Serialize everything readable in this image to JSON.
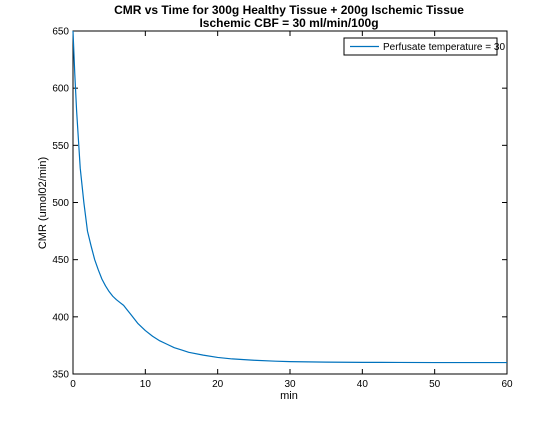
{
  "chart_data": {
    "type": "line",
    "title": "CMR vs Time for 300g Healthy Tissue + 200g Ischemic Tissue",
    "subtitle": "Ischemic CBF = 30 ml/min/100g",
    "xlabel": "min",
    "ylabel": "CMR (umol02/min)",
    "xlim": [
      0,
      60
    ],
    "ylim": [
      350,
      650
    ],
    "xticks": [
      "0",
      "10",
      "20",
      "30",
      "40",
      "50",
      "60"
    ],
    "yticks": [
      "350",
      "400",
      "450",
      "500",
      "550",
      "600",
      "650"
    ],
    "grid": false,
    "legend_position": "top-right",
    "series": [
      {
        "name": "Perfusate temperature = 30",
        "color": "#0072BD",
        "x": [
          0,
          0.25,
          0.5,
          0.75,
          1,
          1.5,
          2,
          2.5,
          3,
          3.5,
          4,
          4.5,
          5,
          5.5,
          6,
          6.5,
          7,
          7.5,
          8,
          8.5,
          9,
          10,
          11,
          12,
          13,
          14,
          15,
          16,
          18,
          20,
          22,
          25,
          28,
          30,
          35,
          40,
          45,
          50,
          55,
          60
        ],
        "y": [
          650,
          612,
          580,
          555,
          530,
          500,
          475,
          462,
          450,
          441,
          433,
          427,
          422,
          418,
          415,
          412.5,
          410,
          406,
          402,
          398,
          394,
          388,
          383,
          379,
          376,
          373,
          371,
          369,
          366.5,
          364.5,
          363.2,
          362,
          361.2,
          360.8,
          360.4,
          360.2,
          360.1,
          360,
          360,
          360
        ]
      }
    ]
  }
}
